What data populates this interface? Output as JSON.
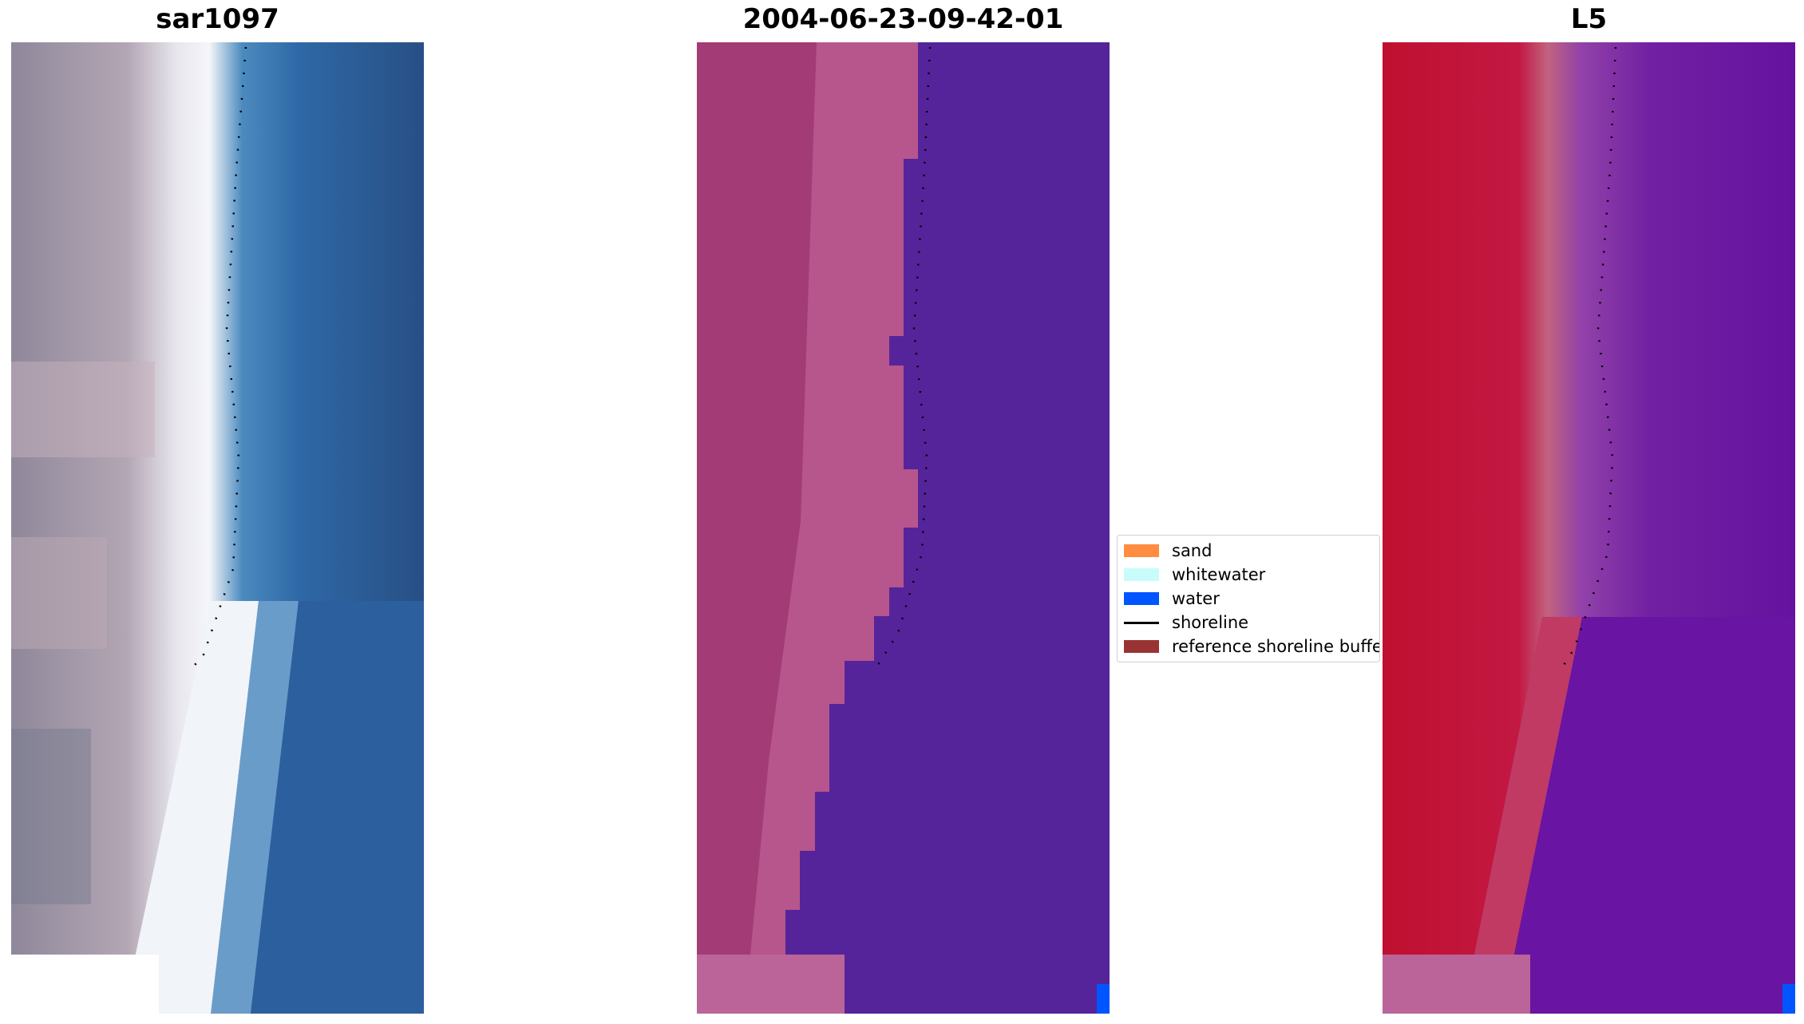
{
  "panels": [
    {
      "title": "sar1097",
      "kind": "rgb"
    },
    {
      "title": "2004-06-23-09-42-01",
      "kind": "classification"
    },
    {
      "title": "L5",
      "kind": "index"
    }
  ],
  "legend": {
    "items": [
      {
        "label": "sand",
        "color": "#ff8c40",
        "type": "patch"
      },
      {
        "label": "whitewater",
        "color": "#c8fcfa",
        "type": "patch"
      },
      {
        "label": "water",
        "color": "#0055ff",
        "type": "patch"
      },
      {
        "label": "shoreline",
        "color": "#000000",
        "type": "line"
      },
      {
        "label": "reference shoreline buffer",
        "color": "#993333",
        "type": "patch"
      }
    ]
  },
  "colors": {
    "rgb_land": "#9d95a5",
    "rgb_white": "#f1f4f8",
    "rgb_water": "#2b62a0",
    "class_land": "#a33b77",
    "class_water": "#56249a",
    "class_corner": "#bb6499",
    "index_land": "#c21843",
    "index_water": "#6a14a3",
    "water_marker": "#0055ff"
  }
}
